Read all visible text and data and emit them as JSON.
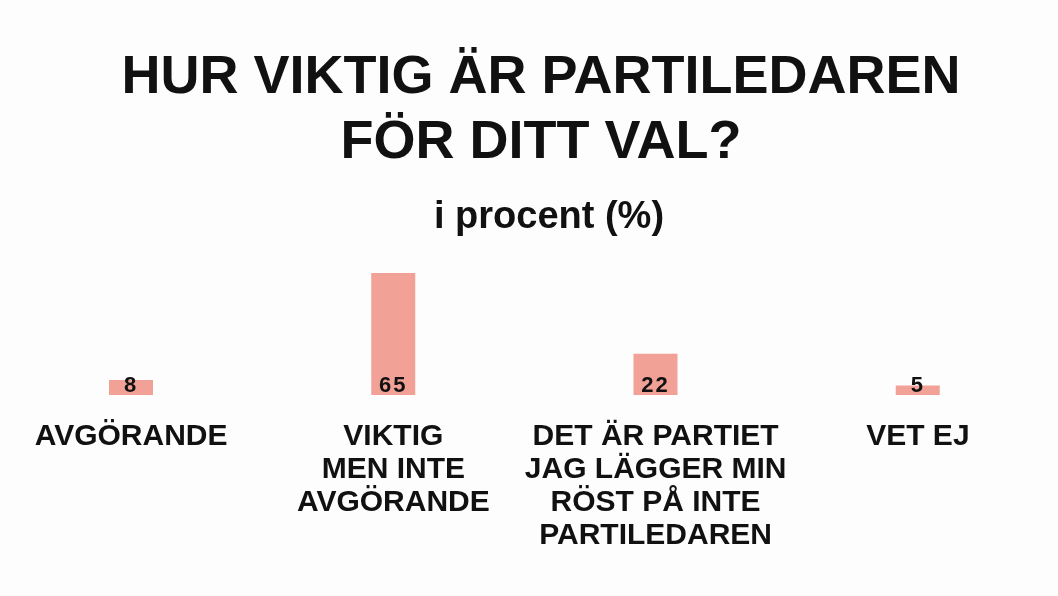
{
  "chart_data": {
    "type": "bar",
    "title": "HUR VIKTIG ÄR PARTILEDAREN FÖR DITT VAL?",
    "subtitle": "i procent (%)",
    "categories": [
      "AVGÖRANDE",
      "VIKTIG\nMEN INTE\nAVGÖRANDE",
      "DET ÄR PARTIET\nJAG LÄGGER MIN\nRÖST PÅ INTE\nPARTILEDAREN",
      "VET EJ"
    ],
    "values": [
      8,
      65,
      22,
      5
    ],
    "color": "#f2a197",
    "data_labels": true
  }
}
